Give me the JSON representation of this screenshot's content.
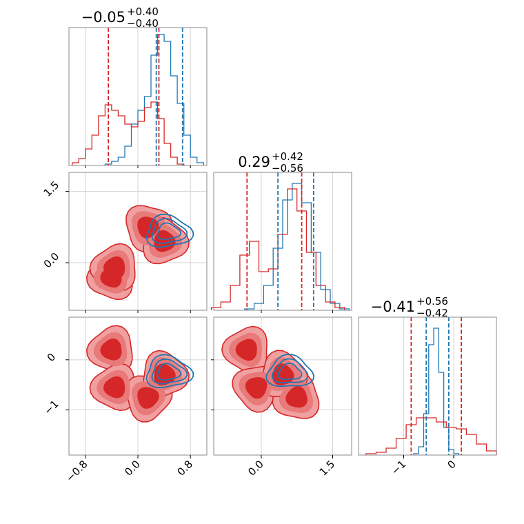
{
  "colors": {
    "blue": "#1f77b4",
    "red": "#d62728",
    "red_light": "#f0a0a0",
    "marker_blue": "#0000ff",
    "marker_red": "#ff0000",
    "grid": "#d3d3d3"
  },
  "chart_data": {
    "type": "corner",
    "parameters": 3,
    "titles": [
      {
        "main": "−0.05",
        "sup": "+0.40",
        "sub": "−0.40"
      },
      {
        "main": "0.29",
        "sup": "+0.42",
        "sub": "−0.56"
      },
      {
        "main": "−0.41",
        "sup": "+0.56",
        "sub": "−0.42"
      }
    ],
    "ranges": [
      [
        -1.05,
        1.05
      ],
      [
        -1.0,
        1.9
      ],
      [
        -1.9,
        0.85
      ]
    ],
    "ticks": {
      "p0": {
        "values": [
          -0.8,
          0.0,
          0.8
        ],
        "labels": [
          "−0.8",
          "0.0",
          "0.8"
        ]
      },
      "p1": {
        "values": [
          0.0,
          1.5
        ],
        "labels": [
          "0.0",
          "1.5"
        ]
      },
      "p2": {
        "values": [
          -1,
          0
        ],
        "labels": [
          "−1",
          "0"
        ]
      }
    },
    "diagonal": [
      {
        "blue_lines": [
          0.28,
          0.68
        ],
        "red_lines": [
          -0.45,
          0.32
        ],
        "blue_x": [
          -0.45,
          -0.35,
          -0.25,
          -0.15,
          -0.05,
          0.05,
          0.15,
          0.25,
          0.35,
          0.45,
          0.55,
          0.65,
          0.75,
          0.85,
          0.95
        ],
        "blue_y": [
          0.01,
          0.03,
          0.06,
          0.14,
          0.3,
          0.4,
          0.5,
          0.8,
          0.95,
          0.9,
          0.65,
          0.45,
          0.22,
          0.06,
          0.02
        ],
        "red_x": [
          -0.95,
          -0.85,
          -0.75,
          -0.65,
          -0.55,
          -0.45,
          -0.35,
          -0.25,
          -0.15,
          -0.05,
          0.05,
          0.15,
          0.25,
          0.35,
          0.45,
          0.55,
          0.65
        ],
        "red_y": [
          0.02,
          0.05,
          0.12,
          0.22,
          0.36,
          0.44,
          0.4,
          0.36,
          0.3,
          0.28,
          0.32,
          0.42,
          0.46,
          0.34,
          0.16,
          0.06,
          0.01
        ]
      },
      {
        "blue_lines": [
          0.35,
          1.1
        ],
        "red_lines": [
          -0.3,
          0.85
        ],
        "blue_x": [
          -0.25,
          -0.05,
          0.15,
          0.35,
          0.55,
          0.75,
          0.95,
          1.15,
          1.35,
          1.55,
          1.75
        ],
        "blue_y": [
          0.01,
          0.05,
          0.18,
          0.45,
          0.8,
          0.92,
          0.78,
          0.42,
          0.15,
          0.05,
          0.01
        ],
        "red_x": [
          -0.95,
          -0.75,
          -0.55,
          -0.35,
          -0.15,
          0.05,
          0.25,
          0.45,
          0.65,
          0.85,
          1.05,
          1.25,
          1.45,
          1.65
        ],
        "red_y": [
          0.02,
          0.06,
          0.18,
          0.4,
          0.5,
          0.28,
          0.3,
          0.55,
          0.88,
          0.72,
          0.42,
          0.18,
          0.06,
          0.02
        ]
      },
      {
        "blue_lines": [
          -0.55,
          -0.1
        ],
        "red_lines": [
          -0.85,
          0.15
        ],
        "blue_x": [
          -0.75,
          -0.65,
          -0.55,
          -0.45,
          -0.35,
          -0.25,
          -0.15,
          -0.05,
          0.05
        ],
        "blue_y": [
          0.01,
          0.06,
          0.3,
          0.8,
          0.92,
          0.6,
          0.2,
          0.04,
          0.01
        ],
        "red_x": [
          -1.65,
          -1.45,
          -1.25,
          -1.05,
          -0.85,
          -0.65,
          -0.45,
          -0.25,
          -0.05,
          0.15,
          0.35,
          0.55,
          0.75
        ],
        "red_y": [
          0.01,
          0.02,
          0.05,
          0.12,
          0.22,
          0.27,
          0.27,
          0.24,
          0.2,
          0.19,
          0.15,
          0.08,
          0.03
        ]
      }
    ],
    "markers": {
      "blue": [
        0.5,
        0.65,
        -0.25
      ],
      "red": [
        [
          -0.4,
          -0.3,
          0.2
        ],
        [
          -0.35,
          -0.1,
          -0.55
        ],
        [
          0.15,
          0.75,
          -0.75
        ],
        [
          0.4,
          0.45,
          -0.3
        ]
      ]
    }
  }
}
